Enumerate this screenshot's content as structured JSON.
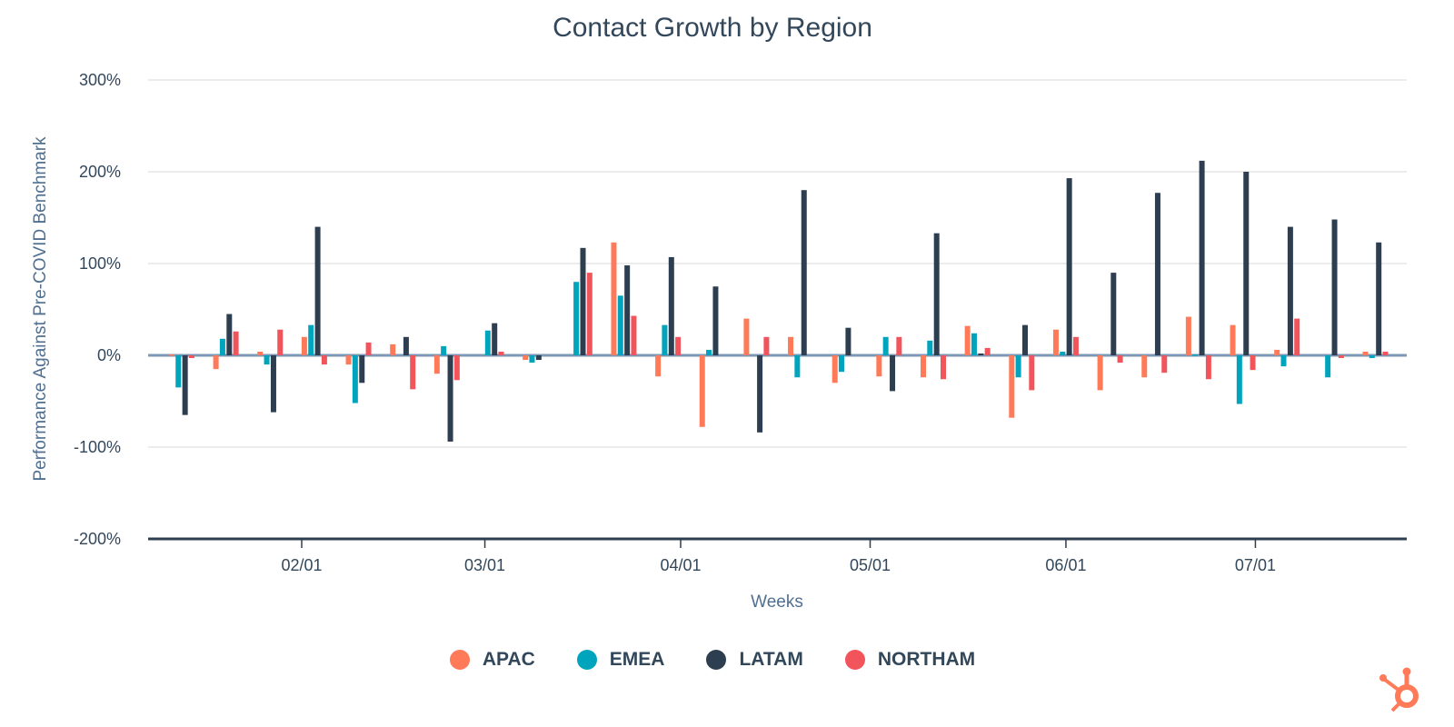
{
  "chart_data": {
    "type": "bar",
    "title": "Contact Growth by Region",
    "xlabel": "Weeks",
    "ylabel": "Performance Against Pre-COVID Benchmark",
    "ylim": [
      -200,
      300
    ],
    "yticks": [
      "300%",
      "200%",
      "100%",
      "0%",
      "-100%",
      "-200%"
    ],
    "ytick_values": [
      300,
      200,
      100,
      0,
      -100,
      -200
    ],
    "xticks": [
      "02/01",
      "03/01",
      "04/01",
      "05/01",
      "06/01",
      "07/01"
    ],
    "xtick_dates": [
      "2020-02-01",
      "2020-03-01",
      "2020-04-01",
      "2020-05-01",
      "2020-06-01",
      "2020-07-01"
    ],
    "x": [
      "2020-01-13",
      "2020-01-20",
      "2020-01-27",
      "2020-02-03",
      "2020-02-10",
      "2020-02-17",
      "2020-02-24",
      "2020-03-02",
      "2020-03-09",
      "2020-03-16",
      "2020-03-23",
      "2020-03-30",
      "2020-04-06",
      "2020-04-13",
      "2020-04-20",
      "2020-04-27",
      "2020-05-04",
      "2020-05-11",
      "2020-05-18",
      "2020-05-25",
      "2020-06-01",
      "2020-06-08",
      "2020-06-15",
      "2020-06-22",
      "2020-06-29",
      "2020-07-06",
      "2020-07-13",
      "2020-07-20"
    ],
    "grid": true,
    "legend_position": "bottom",
    "series": [
      {
        "name": "APAC",
        "color": "#ff7a59",
        "values": [
          1,
          -15,
          4,
          20,
          -10,
          12,
          -20,
          0,
          -5,
          0,
          123,
          -23,
          -78,
          40,
          20,
          -30,
          -23,
          -24,
          32,
          -68,
          28,
          -38,
          -24,
          42,
          33,
          6,
          0,
          4
        ]
      },
      {
        "name": "EMEA",
        "color": "#00a4bd",
        "values": [
          -35,
          18,
          -10,
          33,
          -52,
          0,
          10,
          27,
          -8,
          80,
          65,
          33,
          6,
          0,
          -24,
          -18,
          20,
          16,
          24,
          -24,
          4,
          0,
          0,
          1,
          -53,
          -12,
          -24,
          -3
        ]
      },
      {
        "name": "LATAM",
        "color": "#2d3e50",
        "values": [
          -65,
          45,
          -62,
          140,
          -30,
          20,
          -94,
          35,
          -5,
          117,
          98,
          107,
          75,
          -84,
          180,
          30,
          -39,
          133,
          2,
          33,
          193,
          90,
          177,
          212,
          200,
          140,
          148,
          123
        ]
      },
      {
        "name": "NORTHAM",
        "color": "#f2545b",
        "values": [
          -3,
          26,
          28,
          -10,
          14,
          -37,
          -27,
          4,
          0,
          90,
          43,
          20,
          0,
          20,
          0,
          0,
          20,
          -26,
          8,
          -38,
          20,
          -8,
          -19,
          -26,
          -16,
          40,
          -3,
          4
        ]
      }
    ]
  },
  "brand": {
    "logo": "HubSpot sprocket",
    "color": "#ff7a59"
  }
}
